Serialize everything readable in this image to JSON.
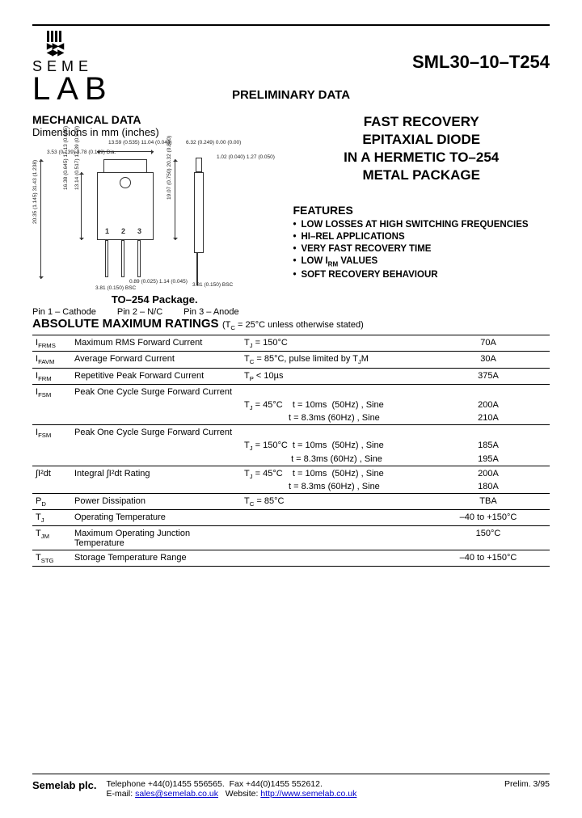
{
  "header": {
    "logo_line1": "SEME",
    "logo_line2": "LAB",
    "part_number": "SML30–10–T254",
    "preliminary": "PRELIMINARY DATA"
  },
  "mechanical": {
    "title": "MECHANICAL DATA",
    "subtitle": "Dimensions in mm (inches)",
    "package_label": "TO–254 Package.",
    "pin1": "Pin 1 – Cathode",
    "pin2": "Pin 2 – N/C",
    "pin3": "Pin 3 – Anode",
    "dims": {
      "d1": "13.59 (0.535)\n11.04 (0.043)",
      "d2": "3.53 (0.139)\n3.78 (0.149)",
      "d2_suffix": "Dia.",
      "d3": "6.32 (0.249)\n0.00 (0.00)",
      "d4": "1.02 (0.040)\n1.27 (0.050)",
      "d5": "16.38 (0.645)\n17.13 (0.685)",
      "d6": "13.14 (0.517)\n13.39 (0.548)",
      "d7": "19.07 (0.750)\n20.32 (0.800)",
      "d8": "20.35 (1.145)\n31.43 (1.238)",
      "d9": "0.89 (0.025)\n1.14 (0.045)",
      "d10": "3.81 (0.150)\nBSC",
      "d11": "3.81 (0.150)\nBSC"
    }
  },
  "product": {
    "title_l1": "FAST RECOVERY",
    "title_l2": "EPITAXIAL DIODE",
    "title_l3": "IN A HERMETIC TO–254",
    "title_l4": "METAL PACKAGE",
    "features_heading": "FEATURES",
    "features": [
      "LOW LOSSES AT HIGH SWITCHING FREQUENCIES",
      "HI–REL APPLICATIONS",
      "VERY FAST RECOVERY TIME",
      "LOW I_RM VALUES",
      "SOFT RECOVERY BEHAVIOUR"
    ]
  },
  "ratings": {
    "heading": "ABSOLUTE MAXIMUM RATINGS",
    "condition_note": "(T_C = 25°C unless otherwise stated)",
    "rows": [
      {
        "sym": "I_FRMS",
        "param": "Maximum RMS Forward Current",
        "cond": "T_J = 150°C",
        "val": "70A"
      },
      {
        "sym": "I_FAVM",
        "param": "Average Forward  Current",
        "cond": "T_C = 85°C, pulse limited by T_JM",
        "val": "30A"
      },
      {
        "sym": "I_FRM",
        "param": "Repetitive Peak Forward Current",
        "cond": "T_P < 10µs",
        "val": "375A"
      },
      {
        "sym": "I_FSM",
        "param": "Peak One Cycle Surge Forward Current",
        "cond": "",
        "val": ""
      },
      {
        "sym": "",
        "param": "",
        "cond": "T_J = 45°C    t = 10ms  (50Hz) , Sine",
        "val": "200A",
        "noborder": true
      },
      {
        "sym": "",
        "param": "",
        "cond": "                  t = 8.3ms (60Hz) , Sine",
        "val": "210A",
        "noborder": true
      },
      {
        "sym": "I_FSM",
        "param": "Peak One Cycle Surge Forward Current",
        "cond": "",
        "val": ""
      },
      {
        "sym": "",
        "param": "",
        "cond": "T_J = 150°C  t = 10ms  (50Hz) , Sine",
        "val": "185A",
        "noborder": true
      },
      {
        "sym": "",
        "param": "",
        "cond": "                   t = 8.3ms (60Hz) , Sine",
        "val": "195A",
        "noborder": true
      },
      {
        "sym": "∫I²dt",
        "param": "Integral ∫I²dt Rating",
        "cond": "T_J = 45°C    t = 10ms  (50Hz) , Sine",
        "val": "200A"
      },
      {
        "sym": "",
        "param": "",
        "cond": "                  t = 8.3ms (60Hz) , Sine",
        "val": "180A",
        "noborder": true
      },
      {
        "sym": "P_D",
        "param": "Power Dissipation",
        "cond": "T_C = 85°C",
        "val": "TBA"
      },
      {
        "sym": "T_J",
        "param": "Operating Temperature",
        "cond": "",
        "val": "–40 to +150°C"
      },
      {
        "sym": "T_JM",
        "param": "Maximum Operating Junction Temperature",
        "cond": "",
        "val": "150°C"
      },
      {
        "sym": "T_STG",
        "param": "Storage Temperature Range",
        "cond": "",
        "val": "–40 to +150°C"
      }
    ]
  },
  "footer": {
    "company": "Semelab plc.",
    "tel": "Telephone +44(0)1455 556565.",
    "fax": "Fax +44(0)1455 552612.",
    "email_label": "E-mail:",
    "email": "sales@semelab.co.uk",
    "web_label": "Website:",
    "web": "http://www.semelab.co.uk",
    "rev": "Prelim. 3/95"
  }
}
